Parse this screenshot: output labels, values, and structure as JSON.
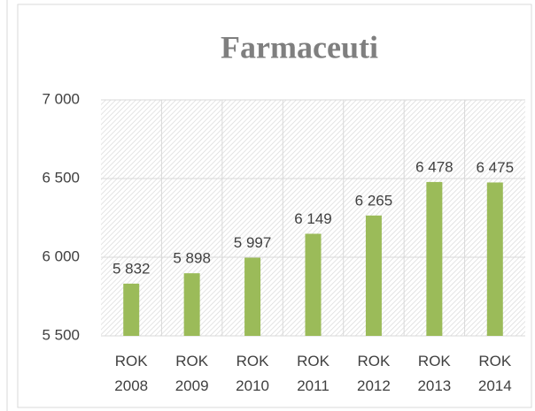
{
  "chart_data": {
    "type": "bar",
    "title": "Farmaceuti",
    "categories": [
      "ROK 2008",
      "ROK 2009",
      "ROK 2010",
      "ROK 2011",
      "ROK 2012",
      "ROK 2013",
      "ROK 2014"
    ],
    "values": [
      5832,
      5898,
      5997,
      6149,
      6265,
      6478,
      6475
    ],
    "value_labels": [
      "5 832",
      "5 898",
      "5 997",
      "6 149",
      "6 265",
      "6 478",
      "6 475"
    ],
    "color": "#9bbb59",
    "ylim": [
      5500,
      7000
    ],
    "yticks": [
      {
        "value": 5500,
        "label": "5 500"
      },
      {
        "value": 6000,
        "label": "6 000"
      },
      {
        "value": 6500,
        "label": "6 500"
      },
      {
        "value": 7000,
        "label": "7 000"
      }
    ],
    "grid": true
  }
}
